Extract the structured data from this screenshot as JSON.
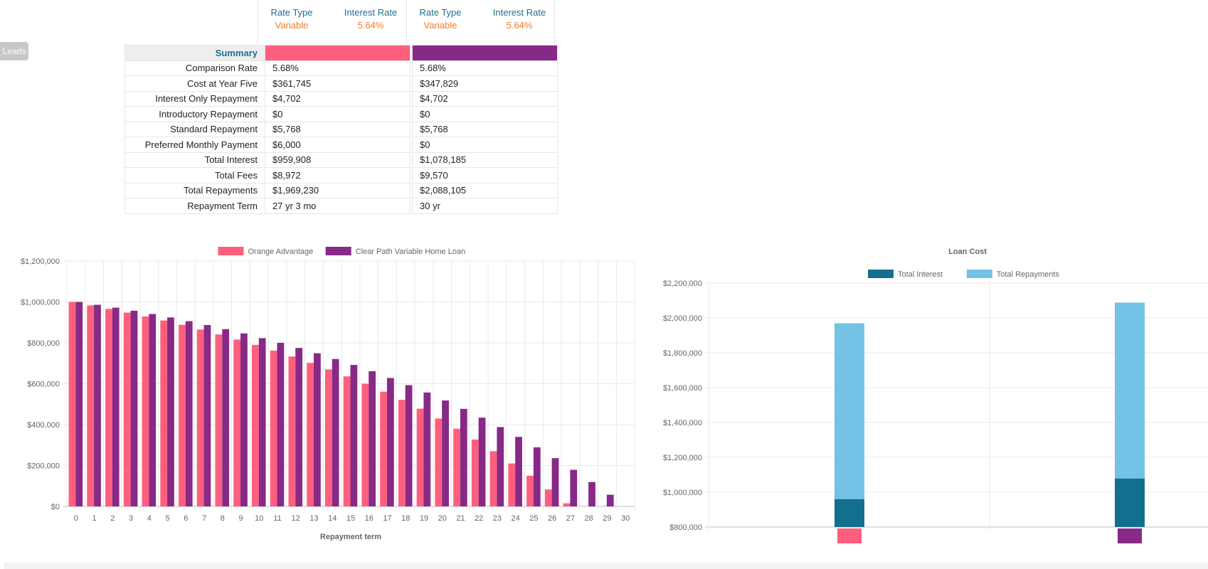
{
  "leads_tab": "Leads",
  "rate_headers": [
    {
      "type_label": "Rate Type",
      "type_value": "Variable",
      "rate_label": "Interest Rate",
      "rate_value": "5.64%"
    },
    {
      "type_label": "Rate Type",
      "type_value": "Variable",
      "rate_label": "Interest Rate",
      "rate_value": "5.64%"
    }
  ],
  "summary": {
    "title": "Summary",
    "product_colors": [
      "#ff5f7e",
      "#872986"
    ],
    "rows": [
      {
        "label": "Comparison Rate",
        "values": [
          "5.68%",
          "5.68%"
        ]
      },
      {
        "label": "Cost at Year Five",
        "values": [
          "$361,745",
          "$347,829"
        ]
      },
      {
        "label": "Interest Only Repayment",
        "values": [
          "$4,702",
          "$4,702"
        ]
      },
      {
        "label": "Introductory Repayment",
        "values": [
          "$0",
          "$0"
        ]
      },
      {
        "label": "Standard Repayment",
        "values": [
          "$5,768",
          "$5,768"
        ]
      },
      {
        "label": "Preferred Monthly Payment",
        "values": [
          "$6,000",
          "$0"
        ]
      },
      {
        "label": "Total Interest",
        "values": [
          "$959,908",
          "$1,078,185"
        ]
      },
      {
        "label": "Total Fees",
        "values": [
          "$8,972",
          "$9,570"
        ]
      },
      {
        "label": "Total Repayments",
        "values": [
          "$1,969,230",
          "$2,088,105"
        ]
      },
      {
        "label": "Repayment Term",
        "values": [
          "27 yr 3 mo",
          "30 yr"
        ]
      }
    ]
  },
  "chart_data": [
    {
      "type": "bar",
      "title": "",
      "xlabel": "Repayment term",
      "ylabel": "",
      "ylim": [
        0,
        1200000
      ],
      "yticks": [
        "$0",
        "$200,000",
        "$400,000",
        "$600,000",
        "$800,000",
        "$1,000,000",
        "$1,200,000"
      ],
      "grid": true,
      "legend": "top-center",
      "categories": [
        "0",
        "1",
        "2",
        "3",
        "4",
        "5",
        "6",
        "7",
        "8",
        "9",
        "10",
        "11",
        "12",
        "13",
        "14",
        "15",
        "16",
        "17",
        "18",
        "19",
        "20",
        "21",
        "22",
        "23",
        "24",
        "25",
        "26",
        "27",
        "28",
        "29",
        "30"
      ],
      "series": [
        {
          "name": "Orange Advantage",
          "color": "#ff5f7e",
          "values": [
            1000000,
            983000,
            966000,
            948000,
            929000,
            909000,
            888000,
            865000,
            841000,
            816000,
            790000,
            762000,
            733000,
            702000,
            670000,
            636000,
            600000,
            561000,
            521000,
            478000,
            430000,
            380000,
            327000,
            270000,
            210000,
            150000,
            83000,
            15000,
            0,
            0,
            0
          ]
        },
        {
          "name": "Clear Path Variable Home Loan",
          "color": "#872986",
          "values": [
            1000000,
            986000,
            972000,
            957000,
            941000,
            924000,
            906000,
            887000,
            867000,
            846000,
            823000,
            800000,
            775000,
            749000,
            721000,
            692000,
            661000,
            628000,
            593000,
            557000,
            518000,
            477000,
            434000,
            388000,
            340000,
            289000,
            236000,
            179000,
            119000,
            57000,
            0
          ]
        }
      ]
    },
    {
      "type": "bar",
      "title": "Loan Cost",
      "xlabel": "",
      "ylabel": "",
      "ylim": [
        800000,
        2200000
      ],
      "yticks": [
        "$800,000",
        "$1,000,000",
        "$1,200,000",
        "$1,400,000",
        "$1,600,000",
        "$1,800,000",
        "$2,000,000",
        "$2,200,000"
      ],
      "grid": true,
      "legend": "top-center",
      "category_colors": [
        "#ff5f7e",
        "#872986"
      ],
      "series": [
        {
          "name": "Total Interest",
          "color": "#136f8e",
          "values": [
            959908,
            1078185
          ]
        },
        {
          "name": "Total Repayments",
          "color": "#74c3e7",
          "values": [
            1969230,
            2088105
          ]
        }
      ]
    }
  ]
}
